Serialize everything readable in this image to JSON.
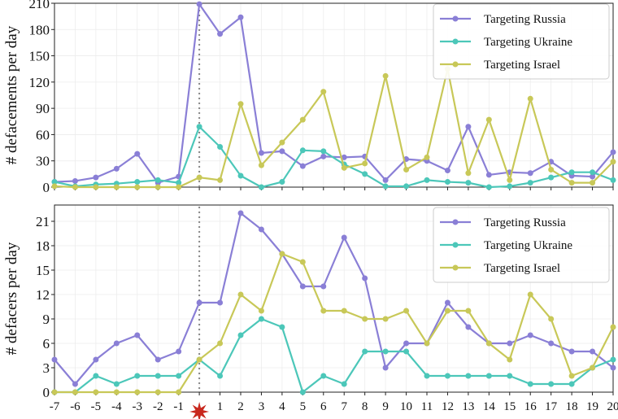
{
  "colors": {
    "russia": "#8a7fd6",
    "ukraine": "#4cc7b9",
    "israel": "#c8c858",
    "event": "#c8281e",
    "marker_line": "#888888"
  },
  "event_marker": {
    "x": 0,
    "icon": "red-star-icon"
  },
  "chart_data": [
    {
      "type": "line",
      "title": "",
      "xlabel": "",
      "ylabel": "# defacements per day",
      "xlim": [
        -7,
        20
      ],
      "ylim": [
        0,
        210
      ],
      "yticks": [
        0,
        30,
        60,
        90,
        120,
        150,
        180,
        210
      ],
      "x": [
        -7,
        -6,
        -5,
        -4,
        -3,
        -2,
        -1,
        0,
        1,
        2,
        3,
        4,
        5,
        6,
        7,
        8,
        9,
        10,
        11,
        12,
        13,
        14,
        15,
        16,
        17,
        18,
        19,
        20
      ],
      "legend_position": "top-right",
      "series": [
        {
          "name": "Targeting Russia",
          "key": "russia",
          "values": [
            6,
            7,
            11,
            21,
            38,
            5,
            12,
            209,
            175,
            194,
            39,
            41,
            24,
            35,
            34,
            35,
            8,
            32,
            30,
            19,
            69,
            14,
            17,
            16,
            29,
            13,
            12,
            40
          ]
        },
        {
          "name": "Targeting Ukraine",
          "key": "ukraine",
          "values": [
            6,
            1,
            3,
            4,
            6,
            8,
            5,
            69,
            46,
            13,
            0,
            6,
            42,
            41,
            26,
            15,
            1,
            1,
            8,
            6,
            5,
            0,
            1,
            5,
            11,
            17,
            17,
            8
          ]
        },
        {
          "name": "Targeting Israel",
          "key": "israel",
          "values": [
            1,
            0,
            0,
            0,
            0,
            0,
            0,
            11,
            8,
            95,
            25,
            51,
            77,
            109,
            22,
            27,
            127,
            20,
            34,
            135,
            16,
            77,
            8,
            101,
            20,
            5,
            5,
            29
          ]
        }
      ]
    },
    {
      "type": "line",
      "title": "",
      "xlabel": "",
      "ylabel": "# defacers per day",
      "xlim": [
        -7,
        20
      ],
      "ylim": [
        0,
        23
      ],
      "yticks": [
        0,
        3,
        6,
        9,
        12,
        15,
        18,
        21
      ],
      "x": [
        -7,
        -6,
        -5,
        -4,
        -3,
        -2,
        -1,
        0,
        1,
        2,
        3,
        4,
        5,
        6,
        7,
        8,
        9,
        10,
        11,
        12,
        13,
        14,
        15,
        16,
        17,
        18,
        19,
        20
      ],
      "xtick_labels": [
        "-7",
        "-6",
        "-5",
        "-4",
        "-3",
        "-2",
        "-1",
        "",
        "1",
        "2",
        "3",
        "4",
        "5",
        "6",
        "7",
        "8",
        "9",
        "10",
        "11",
        "12",
        "13",
        "14",
        "15",
        "16",
        "17",
        "18",
        "19",
        "20"
      ],
      "legend_position": "top-right",
      "series": [
        {
          "name": "Targeting Russia",
          "key": "russia",
          "values": [
            4,
            1,
            4,
            6,
            7,
            4,
            5,
            11,
            11,
            22,
            20,
            17,
            13,
            13,
            19,
            14,
            3,
            6,
            6,
            11,
            8,
            6,
            6,
            7,
            6,
            5,
            5,
            3
          ]
        },
        {
          "name": "Targeting Ukraine",
          "key": "ukraine",
          "values": [
            0,
            0,
            2,
            1,
            2,
            2,
            2,
            4,
            2,
            7,
            9,
            8,
            0,
            2,
            1,
            5,
            5,
            5,
            2,
            2,
            2,
            2,
            2,
            1,
            1,
            1,
            3,
            4
          ]
        },
        {
          "name": "Targeting Israel",
          "key": "israel",
          "values": [
            0,
            0,
            0,
            0,
            0,
            0,
            0,
            4,
            6,
            12,
            10,
            17,
            16,
            10,
            10,
            9,
            9,
            10,
            6,
            10,
            10,
            6,
            4,
            12,
            9,
            2,
            3,
            8
          ]
        }
      ]
    }
  ]
}
